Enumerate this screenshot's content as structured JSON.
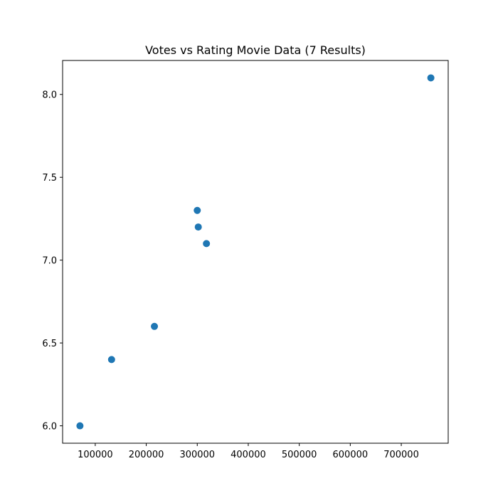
{
  "chart_data": {
    "type": "scatter",
    "title": "Votes vs Rating Movie Data (7 Results)",
    "xlabel": "",
    "ylabel": "",
    "x": [
      70000,
      132000,
      216000,
      300000,
      302000,
      318000,
      758000
    ],
    "y": [
      6.0,
      6.4,
      6.6,
      7.3,
      7.2,
      7.1,
      8.1
    ],
    "xlim": [
      36000,
      792000
    ],
    "ylim": [
      5.895,
      8.205
    ],
    "xticks": [
      100000,
      200000,
      300000,
      400000,
      500000,
      600000,
      700000
    ],
    "xtick_labels": [
      "100000",
      "200000",
      "300000",
      "400000",
      "500000",
      "600000",
      "700000"
    ],
    "yticks": [
      6.0,
      6.5,
      7.0,
      7.5,
      8.0
    ],
    "ytick_labels": [
      "6.0",
      "6.5",
      "7.0",
      "7.5",
      "8.0"
    ],
    "grid": false,
    "legend": "none",
    "colors": {
      "marker": "#1f77b4",
      "axes": "#000000",
      "background": "#ffffff"
    }
  }
}
